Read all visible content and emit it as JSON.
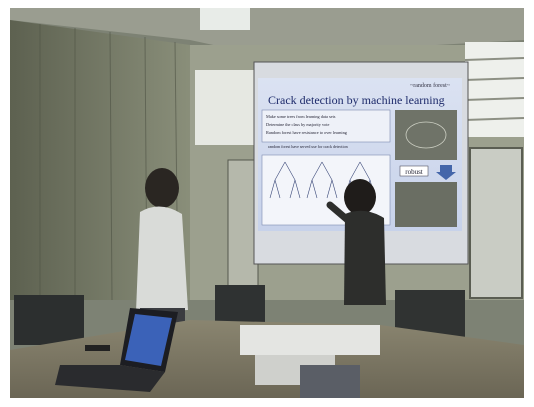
{
  "slide": {
    "tag": "~random forest~",
    "title": "Crack detection by machine learning",
    "bullets": [
      "Make some trees from learning data sets",
      "Determine the class by majority vote",
      "Random forest have resistance to over learning"
    ],
    "note": "random forest have served use for crack detection",
    "label": "robust"
  }
}
